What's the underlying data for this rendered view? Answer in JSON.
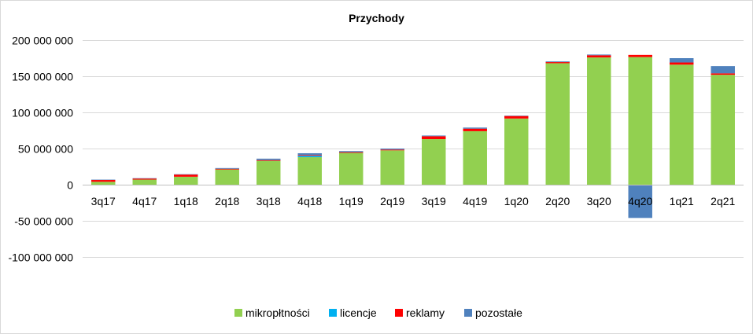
{
  "chart_data": {
    "type": "bar",
    "stacked": true,
    "title": "Przychody",
    "xlabel": "",
    "ylabel": "",
    "categories": [
      "3q17",
      "4q17",
      "1q18",
      "2q18",
      "3q18",
      "4q18",
      "1q19",
      "2q19",
      "3q19",
      "4q19",
      "1q20",
      "2q20",
      "3q20",
      "4q20",
      "1q21",
      "2q21"
    ],
    "ylim": [
      -100000000,
      200000000
    ],
    "yticks": [
      -100000000,
      -50000000,
      0,
      50000000,
      100000000,
      150000000,
      200000000
    ],
    "ytick_labels": [
      "-100 000 000",
      "-50 000 000",
      "0",
      "50 000 000",
      "100 000 000",
      "150 000 000",
      "200 000 000"
    ],
    "grid": true,
    "legend_position": "bottom",
    "series": [
      {
        "name": "mikropłtności",
        "color": "#92d050",
        "values": [
          4000000,
          7000000,
          11000000,
          21000000,
          33000000,
          38000000,
          44000000,
          47500000,
          63000000,
          74000000,
          91500000,
          168000000,
          176000000,
          176500000,
          166000000,
          152000000
        ]
      },
      {
        "name": "licencje",
        "color": "#00b0f0",
        "values": [
          0,
          0,
          0,
          0,
          0,
          2000000,
          0,
          0,
          0,
          0,
          0,
          0,
          0,
          0,
          0,
          0
        ]
      },
      {
        "name": "reklamy",
        "color": "#ff0000",
        "values": [
          2500000,
          1500000,
          3000000,
          1000000,
          1000000,
          1000000,
          1000000,
          1000000,
          4000000,
          3500000,
          3500000,
          1500000,
          3000000,
          3000000,
          3000000,
          2000000
        ]
      },
      {
        "name": "pozostałe",
        "color": "#4f81bd",
        "values": [
          500000,
          500000,
          500000,
          1000000,
          2000000,
          2500000,
          1500000,
          1500000,
          1000000,
          1500000,
          500000,
          1000000,
          1000000,
          -46000000,
          6000000,
          10000000
        ]
      }
    ]
  }
}
